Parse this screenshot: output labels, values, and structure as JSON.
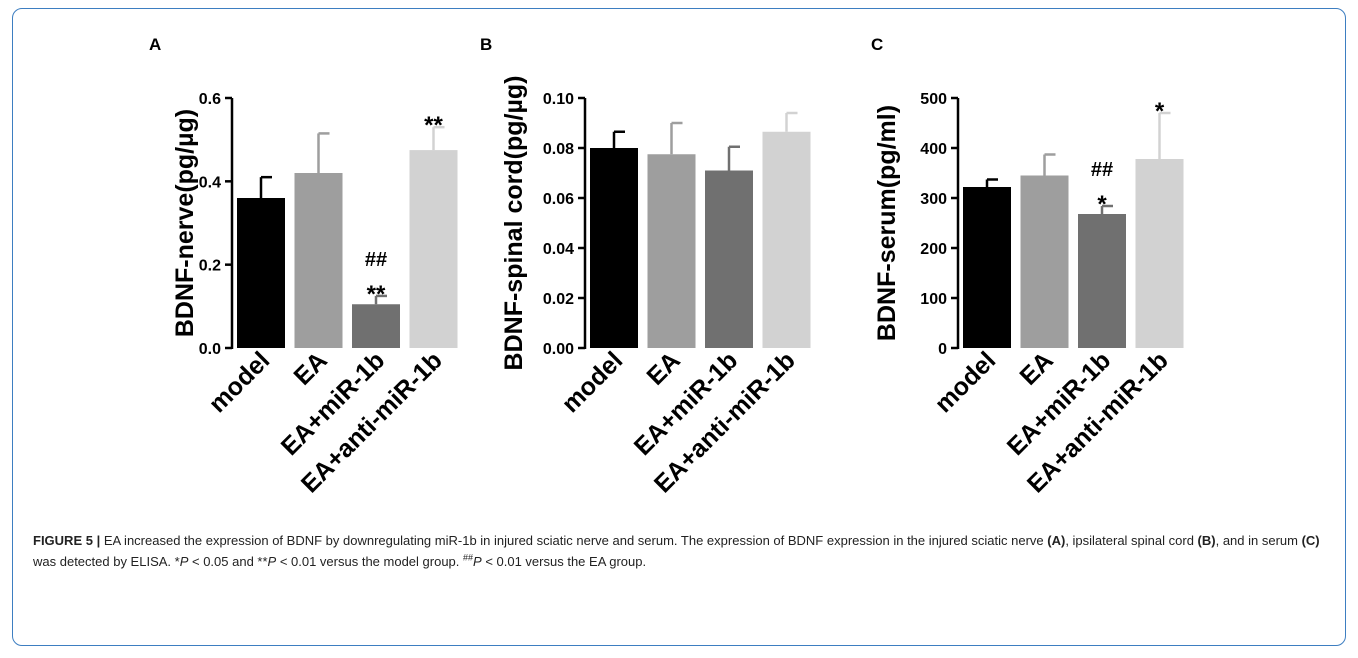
{
  "chart_data": [
    {
      "panel": "A",
      "type": "bar",
      "ylabel": "BDNF-nerve(pg/µg)",
      "ylim": [
        0,
        0.6
      ],
      "yticks": [
        "0.0",
        "0.2",
        "0.4",
        "0.6"
      ],
      "yticks_values": [
        0,
        0.2,
        0.4,
        0.6
      ],
      "categories": [
        "model",
        "EA",
        "EA+miR-1b",
        "EA+anti-miR-1b"
      ],
      "values": [
        0.36,
        0.42,
        0.105,
        0.475
      ],
      "errors": [
        0.05,
        0.095,
        0.02,
        0.055
      ],
      "colors": [
        "#000000",
        "#9e9e9e",
        "#707070",
        "#d2d2d2"
      ],
      "annotations": [
        {
          "category_index": 2,
          "lines": [
            "##",
            "**"
          ]
        },
        {
          "category_index": 3,
          "lines": [
            "**"
          ]
        }
      ]
    },
    {
      "panel": "B",
      "type": "bar",
      "ylabel": "BDNF-spinal cord(pg/µg)",
      "ylim": [
        0,
        0.1
      ],
      "yticks": [
        "0.00",
        "0.02",
        "0.04",
        "0.06",
        "0.08",
        "0.10"
      ],
      "yticks_values": [
        0,
        0.02,
        0.04,
        0.06,
        0.08,
        0.1
      ],
      "categories": [
        "model",
        "EA",
        "EA+miR-1b",
        "EA+anti-miR-1b"
      ],
      "values": [
        0.08,
        0.0775,
        0.071,
        0.0865
      ],
      "errors": [
        0.0065,
        0.0125,
        0.0095,
        0.0075
      ],
      "colors": [
        "#000000",
        "#9e9e9e",
        "#707070",
        "#d2d2d2"
      ],
      "annotations": []
    },
    {
      "panel": "C",
      "type": "bar",
      "ylabel": "BDNF-serum(pg/ml)",
      "ylim": [
        0,
        500
      ],
      "yticks": [
        "0",
        "100",
        "200",
        "300",
        "400",
        "500"
      ],
      "yticks_values": [
        0,
        100,
        200,
        300,
        400,
        500
      ],
      "categories": [
        "model",
        "EA",
        "EA+miR-1b",
        "EA+anti-miR-1b"
      ],
      "values": [
        322,
        345,
        268,
        378
      ],
      "errors": [
        15,
        42,
        16,
        92
      ],
      "colors": [
        "#000000",
        "#9e9e9e",
        "#707070",
        "#d2d2d2"
      ],
      "annotations": [
        {
          "category_index": 2,
          "lines": [
            "##",
            "*"
          ]
        },
        {
          "category_index": 3,
          "lines": [
            "*"
          ]
        }
      ]
    }
  ],
  "caption": {
    "label": "FIGURE 5 |",
    "segments": [
      {
        "text": " EA increased the expression of BDNF by downregulating miR-1b in injured sciatic nerve and serum. The expression of BDNF expression in the injured sciatic nerve ",
        "style": "normal"
      },
      {
        "text": "(A)",
        "style": "bold"
      },
      {
        "text": ", ipsilateral spinal cord ",
        "style": "normal"
      },
      {
        "text": "(B)",
        "style": "bold"
      },
      {
        "text": ", and in serum ",
        "style": "normal"
      },
      {
        "text": "(C)",
        "style": "bold"
      },
      {
        "text": " was detected by ELISA. *",
        "style": "normal"
      },
      {
        "text": "P",
        "style": "italic"
      },
      {
        "text": " < 0.05 and **",
        "style": "normal"
      },
      {
        "text": "P",
        "style": "italic"
      },
      {
        "text": " < 0.01 versus the model group. ",
        "style": "normal"
      },
      {
        "text": "##",
        "style": "sup"
      },
      {
        "text": "P",
        "style": "italic"
      },
      {
        "text": " < 0.01 versus the EA group.",
        "style": "normal"
      }
    ]
  }
}
